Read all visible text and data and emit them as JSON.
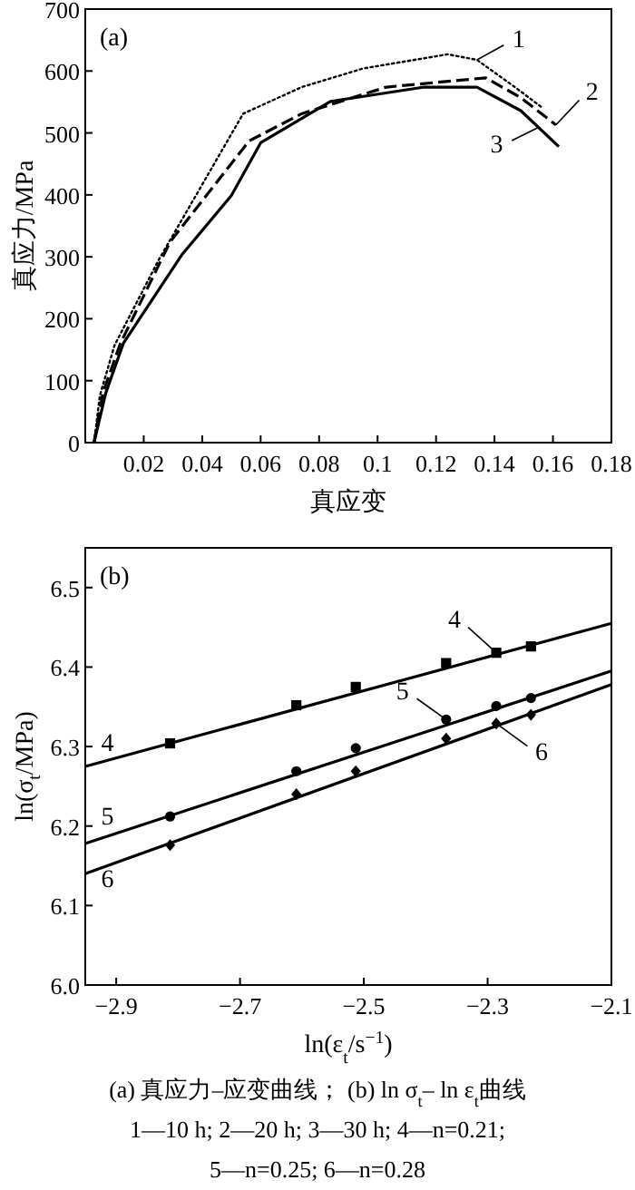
{
  "chart_data": [
    {
      "type": "line",
      "xlabel": "真应变",
      "ylabel": "真应力/MPa",
      "xlim": [
        0,
        0.18
      ],
      "ylim": [
        0,
        700
      ],
      "xticks": [
        0.02,
        0.04,
        0.06,
        0.08,
        0.1,
        0.12,
        0.14,
        0.16,
        0.18
      ],
      "yticks": [
        0,
        100,
        200,
        300,
        400,
        500,
        600,
        700
      ],
      "series": [
        {
          "color": "#000000",
          "line_style": "dotted",
          "x": [
            0.003,
            0.005,
            0.01,
            0.025,
            0.054,
            0.074,
            0.095,
            0.124,
            0.134,
            0.147,
            0.156
          ],
          "values": [
            0,
            76,
            157,
            294,
            531,
            574,
            604,
            627,
            618,
            574,
            542
          ]
        },
        {
          "color": "#000000",
          "line_style": "dashed",
          "x": [
            0.003,
            0.006,
            0.012,
            0.029,
            0.056,
            0.074,
            0.103,
            0.137,
            0.149,
            0.161
          ],
          "values": [
            0,
            80,
            160,
            324,
            487,
            531,
            574,
            589,
            557,
            513
          ]
        },
        {
          "color": "#000000",
          "line_style": "solid",
          "x": [
            0.003,
            0.007,
            0.013,
            0.033,
            0.05,
            0.06,
            0.084,
            0.116,
            0.134,
            0.149,
            0.162
          ],
          "values": [
            0,
            80,
            160,
            303,
            399,
            484,
            551,
            574,
            574,
            536,
            478
          ]
        }
      ],
      "annotations": [
        "(a)",
        {
          "text": "1",
          "x": 0.134,
          "y": 618
        },
        {
          "text": "2",
          "x": 0.161,
          "y": 513
        },
        {
          "text": "3",
          "x": 0.155,
          "y": 509
        }
      ]
    },
    {
      "type": "scatter",
      "xlabel": "ln(ε$_{t}$/s$^{−1}$)",
      "ylabel": "ln(σ$_{t}$/MPa)",
      "xlim": [
        -2.95,
        -2.1
      ],
      "ylim": [
        6.0,
        6.55
      ],
      "xticks": [
        {
          "value": -2.9,
          "label": "−2.9"
        },
        {
          "value": -2.7,
          "label": "−2.7"
        },
        {
          "value": -2.5,
          "label": "−2.5"
        },
        {
          "value": -2.3,
          "label": "−2.3"
        },
        {
          "value": -2.1,
          "label": "−2.1"
        }
      ],
      "yticks": [
        {
          "value": 6.0,
          "label": "6.0"
        },
        6.1,
        6.2,
        6.3,
        6.4,
        6.5
      ],
      "x": [
        -2.813,
        -2.609,
        -2.513,
        -2.367,
        -2.286,
        -2.23
      ],
      "series": [
        {
          "marker": "square",
          "color": "#000000",
          "values": [
            6.304,
            6.352,
            6.375,
            6.405,
            6.418,
            6.426
          ]
        },
        {
          "marker": "circle",
          "color": "#000000",
          "values": [
            6.212,
            6.269,
            6.298,
            6.334,
            6.351,
            6.361
          ]
        },
        {
          "marker": "diamond",
          "color": "#000000",
          "values": [
            6.176,
            6.24,
            6.269,
            6.31,
            6.329,
            6.34
          ]
        },
        {
          "type": "line",
          "line_style": "solid",
          "color": "#000000",
          "x": [
            -2.95,
            -2.1
          ],
          "values": [
            6.275,
            6.455
          ]
        },
        {
          "type": "line",
          "line_style": "solid",
          "color": "#000000",
          "x": [
            -2.95,
            -2.1
          ],
          "values": [
            6.178,
            6.395
          ]
        },
        {
          "type": "line",
          "line_style": "solid",
          "color": "#000000",
          "x": [
            -2.95,
            -2.1
          ],
          "values": [
            6.14,
            6.378
          ]
        }
      ],
      "annotations": [
        "(b)",
        {
          "text": "4",
          "x": -2.914,
          "y": 6.283
        },
        {
          "text": "4",
          "x": -2.286,
          "y": 6.418
        },
        {
          "text": "5",
          "x": -2.914,
          "y": 6.188
        },
        {
          "text": "5",
          "x": -2.367,
          "y": 6.334
        },
        {
          "text": "6",
          "x": -2.914,
          "y": 6.151
        },
        {
          "text": "6",
          "x": -2.286,
          "y": 6.329
        },
        "(a) 真应力–应变曲线； (b) ln σ$_{t}$– ln ε$_{t}$曲线",
        "1—10 h; 2—20 h; 3—30 h; 4—n=0.21;",
        "5—n=0.25; 6—n=0.28"
      ]
    }
  ]
}
